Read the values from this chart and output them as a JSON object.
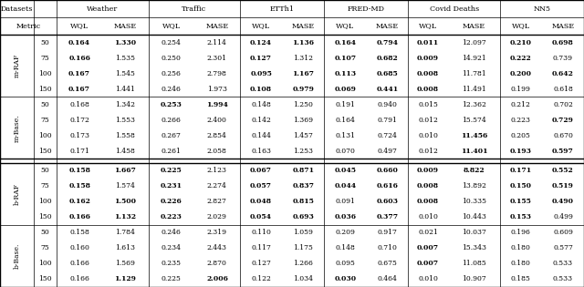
{
  "datasets": [
    "Weather",
    "Traffic",
    "ETTh1",
    "FRED-MD",
    "Covid Deaths",
    "NN5"
  ],
  "horizons": [
    50,
    75,
    100,
    150
  ],
  "row_groups": [
    "m-RAF",
    "m-Base.",
    "b-RAF",
    "b-Base."
  ],
  "data": {
    "m-RAF": {
      "Weather": [
        [
          "0.164",
          "1.330"
        ],
        [
          "0.166",
          "1.535"
        ],
        [
          "0.167",
          "1.545"
        ],
        [
          "0.167",
          "1.441"
        ]
      ],
      "Traffic": [
        [
          "0.254",
          "2.114"
        ],
        [
          "0.250",
          "2.301"
        ],
        [
          "0.256",
          "2.798"
        ],
        [
          "0.246",
          "1.973"
        ]
      ],
      "ETTh1": [
        [
          "0.124",
          "1.136"
        ],
        [
          "0.127",
          "1.312"
        ],
        [
          "0.095",
          "1.167"
        ],
        [
          "0.108",
          "0.979"
        ]
      ],
      "FRED-MD": [
        [
          "0.164",
          "0.794"
        ],
        [
          "0.107",
          "0.682"
        ],
        [
          "0.113",
          "0.685"
        ],
        [
          "0.069",
          "0.441"
        ]
      ],
      "Covid Deaths": [
        [
          "0.011",
          "12.097"
        ],
        [
          "0.009",
          "14.921"
        ],
        [
          "0.008",
          "11.781"
        ],
        [
          "0.008",
          "11.491"
        ]
      ],
      "NN5": [
        [
          "0.210",
          "0.698"
        ],
        [
          "0.222",
          "0.739"
        ],
        [
          "0.200",
          "0.642"
        ],
        [
          "0.199",
          "0.618"
        ]
      ]
    },
    "m-Base.": {
      "Weather": [
        [
          "0.168",
          "1.342"
        ],
        [
          "0.172",
          "1.553"
        ],
        [
          "0.173",
          "1.558"
        ],
        [
          "0.171",
          "1.458"
        ]
      ],
      "Traffic": [
        [
          "0.253",
          "1.994"
        ],
        [
          "0.266",
          "2.400"
        ],
        [
          "0.267",
          "2.854"
        ],
        [
          "0.261",
          "2.058"
        ]
      ],
      "ETTh1": [
        [
          "0.148",
          "1.250"
        ],
        [
          "0.142",
          "1.369"
        ],
        [
          "0.144",
          "1.457"
        ],
        [
          "0.163",
          "1.253"
        ]
      ],
      "FRED-MD": [
        [
          "0.191",
          "0.940"
        ],
        [
          "0.164",
          "0.791"
        ],
        [
          "0.131",
          "0.724"
        ],
        [
          "0.070",
          "0.497"
        ]
      ],
      "Covid Deaths": [
        [
          "0.015",
          "12.362"
        ],
        [
          "0.012",
          "15.574"
        ],
        [
          "0.010",
          "11.456"
        ],
        [
          "0.012",
          "11.401"
        ]
      ],
      "NN5": [
        [
          "0.212",
          "0.702"
        ],
        [
          "0.223",
          "0.729"
        ],
        [
          "0.205",
          "0.670"
        ],
        [
          "0.193",
          "0.597"
        ]
      ]
    },
    "b-RAF": {
      "Weather": [
        [
          "0.158",
          "1.667"
        ],
        [
          "0.158",
          "1.574"
        ],
        [
          "0.162",
          "1.500"
        ],
        [
          "0.166",
          "1.132"
        ]
      ],
      "Traffic": [
        [
          "0.225",
          "2.123"
        ],
        [
          "0.231",
          "2.274"
        ],
        [
          "0.226",
          "2.827"
        ],
        [
          "0.223",
          "2.029"
        ]
      ],
      "ETTh1": [
        [
          "0.067",
          "0.871"
        ],
        [
          "0.057",
          "0.837"
        ],
        [
          "0.048",
          "0.815"
        ],
        [
          "0.054",
          "0.693"
        ]
      ],
      "FRED-MD": [
        [
          "0.045",
          "0.660"
        ],
        [
          "0.044",
          "0.616"
        ],
        [
          "0.091",
          "0.603"
        ],
        [
          "0.036",
          "0.377"
        ]
      ],
      "Covid Deaths": [
        [
          "0.009",
          "8.822"
        ],
        [
          "0.008",
          "13.892"
        ],
        [
          "0.008",
          "10.335"
        ],
        [
          "0.010",
          "10.443"
        ]
      ],
      "NN5": [
        [
          "0.171",
          "0.552"
        ],
        [
          "0.150",
          "0.519"
        ],
        [
          "0.155",
          "0.490"
        ],
        [
          "0.153",
          "0.499"
        ]
      ]
    },
    "b-Base.": {
      "Weather": [
        [
          "0.158",
          "1.784"
        ],
        [
          "0.160",
          "1.613"
        ],
        [
          "0.166",
          "1.569"
        ],
        [
          "0.166",
          "1.129"
        ]
      ],
      "Traffic": [
        [
          "0.246",
          "2.319"
        ],
        [
          "0.234",
          "2.443"
        ],
        [
          "0.235",
          "2.870"
        ],
        [
          "0.225",
          "2.006"
        ]
      ],
      "ETTh1": [
        [
          "0.110",
          "1.059"
        ],
        [
          "0.117",
          "1.175"
        ],
        [
          "0.127",
          "1.266"
        ],
        [
          "0.122",
          "1.034"
        ]
      ],
      "FRED-MD": [
        [
          "0.209",
          "0.917"
        ],
        [
          "0.148",
          "0.710"
        ],
        [
          "0.095",
          "0.675"
        ],
        [
          "0.030",
          "0.464"
        ]
      ],
      "Covid Deaths": [
        [
          "0.021",
          "10.037"
        ],
        [
          "0.007",
          "15.343"
        ],
        [
          "0.007",
          "11.085"
        ],
        [
          "0.010",
          "10.907"
        ]
      ],
      "NN5": [
        [
          "0.196",
          "0.609"
        ],
        [
          "0.180",
          "0.577"
        ],
        [
          "0.180",
          "0.533"
        ],
        [
          "0.185",
          "0.533"
        ]
      ]
    }
  },
  "bold": {
    "m-RAF": {
      "Weather": [
        [
          true,
          true
        ],
        [
          true,
          false
        ],
        [
          true,
          false
        ],
        [
          true,
          false
        ]
      ],
      "Traffic": [
        [
          false,
          false
        ],
        [
          false,
          false
        ],
        [
          false,
          false
        ],
        [
          false,
          false
        ]
      ],
      "ETTh1": [
        [
          true,
          true
        ],
        [
          true,
          false
        ],
        [
          true,
          true
        ],
        [
          true,
          true
        ]
      ],
      "FRED-MD": [
        [
          true,
          true
        ],
        [
          true,
          true
        ],
        [
          true,
          true
        ],
        [
          true,
          true
        ]
      ],
      "Covid Deaths": [
        [
          true,
          false
        ],
        [
          true,
          false
        ],
        [
          true,
          false
        ],
        [
          true,
          false
        ]
      ],
      "NN5": [
        [
          true,
          true
        ],
        [
          true,
          false
        ],
        [
          true,
          true
        ],
        [
          false,
          false
        ]
      ]
    },
    "m-Base.": {
      "Weather": [
        [
          false,
          false
        ],
        [
          false,
          false
        ],
        [
          false,
          false
        ],
        [
          false,
          false
        ]
      ],
      "Traffic": [
        [
          true,
          true
        ],
        [
          false,
          false
        ],
        [
          false,
          false
        ],
        [
          false,
          false
        ]
      ],
      "ETTh1": [
        [
          false,
          false
        ],
        [
          false,
          false
        ],
        [
          false,
          false
        ],
        [
          false,
          false
        ]
      ],
      "FRED-MD": [
        [
          false,
          false
        ],
        [
          false,
          false
        ],
        [
          false,
          false
        ],
        [
          false,
          false
        ]
      ],
      "Covid Deaths": [
        [
          false,
          false
        ],
        [
          false,
          false
        ],
        [
          false,
          true
        ],
        [
          false,
          true
        ]
      ],
      "NN5": [
        [
          false,
          false
        ],
        [
          false,
          true
        ],
        [
          false,
          false
        ],
        [
          true,
          true
        ]
      ]
    },
    "b-RAF": {
      "Weather": [
        [
          true,
          true
        ],
        [
          true,
          false
        ],
        [
          true,
          true
        ],
        [
          true,
          true
        ]
      ],
      "Traffic": [
        [
          true,
          false
        ],
        [
          true,
          false
        ],
        [
          true,
          false
        ],
        [
          true,
          false
        ]
      ],
      "ETTh1": [
        [
          true,
          true
        ],
        [
          true,
          true
        ],
        [
          true,
          true
        ],
        [
          true,
          true
        ]
      ],
      "FRED-MD": [
        [
          true,
          true
        ],
        [
          true,
          true
        ],
        [
          false,
          true
        ],
        [
          true,
          true
        ]
      ],
      "Covid Deaths": [
        [
          true,
          true
        ],
        [
          true,
          false
        ],
        [
          true,
          false
        ],
        [
          false,
          false
        ]
      ],
      "NN5": [
        [
          true,
          true
        ],
        [
          true,
          true
        ],
        [
          true,
          true
        ],
        [
          true,
          false
        ]
      ]
    },
    "b-Base.": {
      "Weather": [
        [
          false,
          false
        ],
        [
          false,
          false
        ],
        [
          false,
          false
        ],
        [
          false,
          true
        ]
      ],
      "Traffic": [
        [
          false,
          false
        ],
        [
          false,
          false
        ],
        [
          false,
          false
        ],
        [
          false,
          true
        ]
      ],
      "ETTh1": [
        [
          false,
          false
        ],
        [
          false,
          false
        ],
        [
          false,
          false
        ],
        [
          false,
          false
        ]
      ],
      "FRED-MD": [
        [
          false,
          false
        ],
        [
          false,
          false
        ],
        [
          false,
          false
        ],
        [
          true,
          false
        ]
      ],
      "Covid Deaths": [
        [
          false,
          false
        ],
        [
          true,
          false
        ],
        [
          true,
          false
        ],
        [
          false,
          false
        ]
      ],
      "NN5": [
        [
          false,
          false
        ],
        [
          false,
          false
        ],
        [
          false,
          false
        ],
        [
          false,
          false
        ]
      ]
    }
  },
  "figsize": [
    6.4,
    3.15
  ],
  "dpi": 100
}
